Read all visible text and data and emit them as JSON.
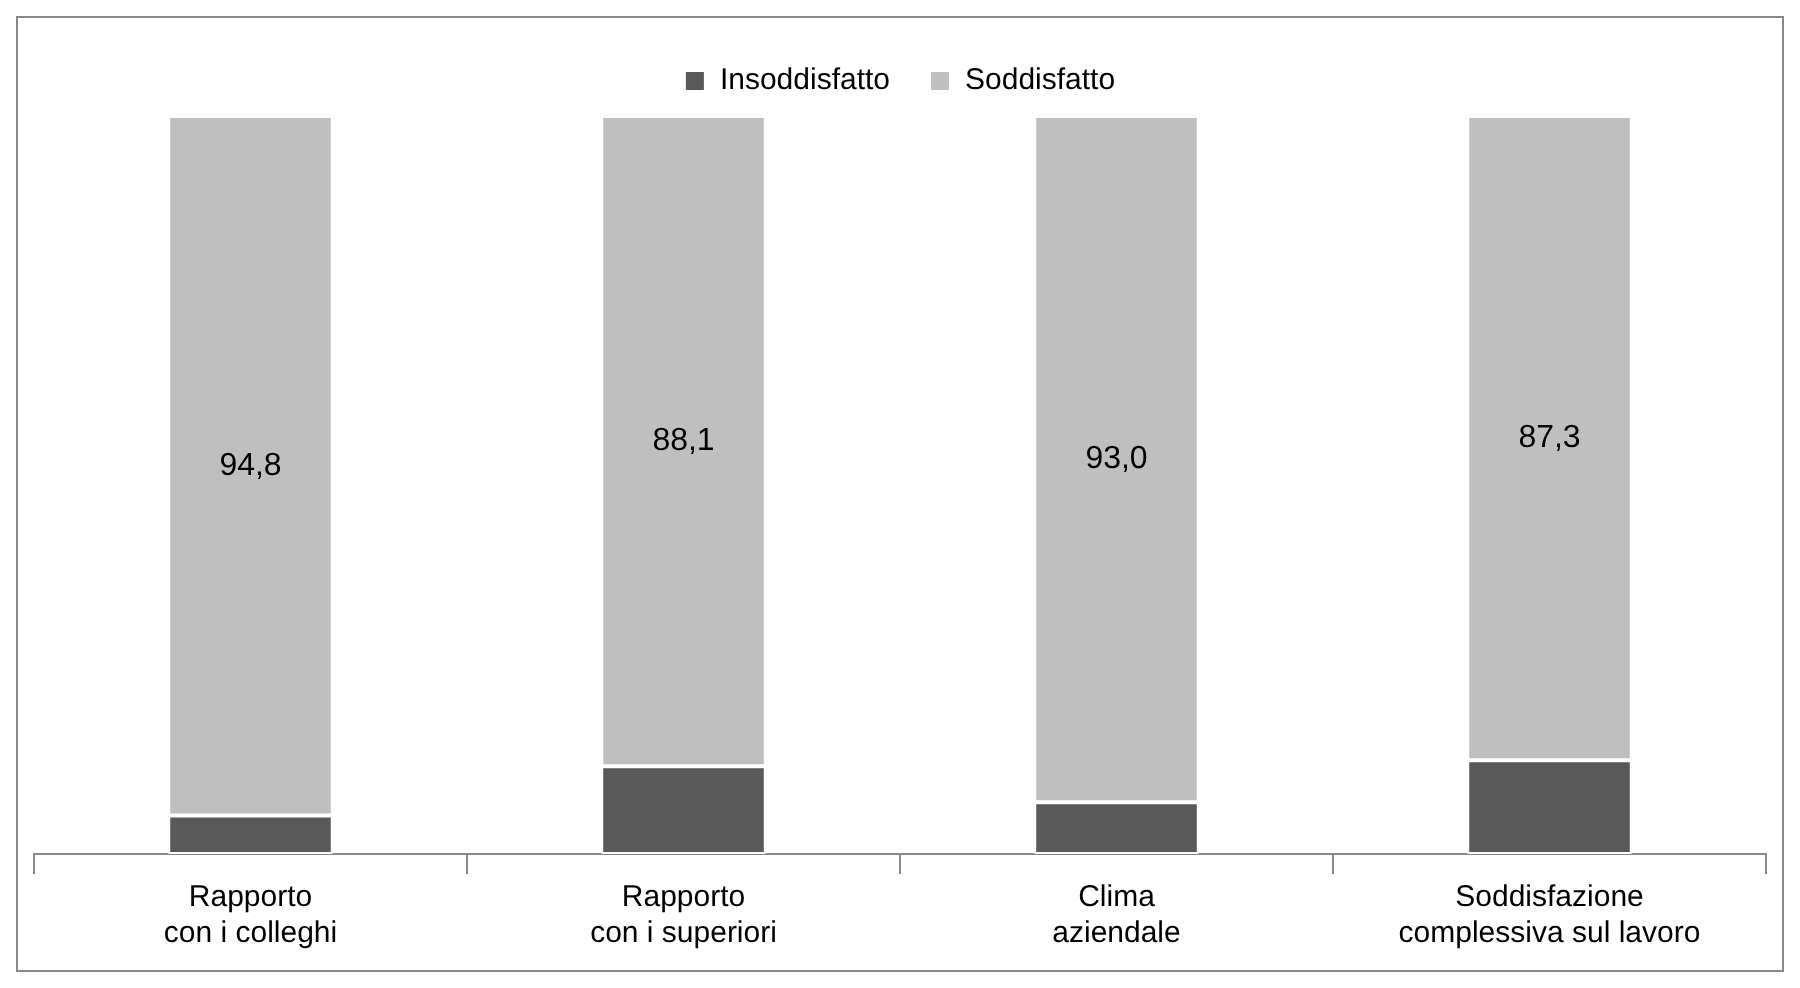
{
  "chart_data": {
    "type": "bar",
    "stacked": true,
    "legend": "top",
    "categories": [
      "Rapporto\ncon i colleghi",
      "Rapporto\ncon i superiori",
      "Clima\naziendale",
      "Soddisfazione\ncomplessiva sul lavoro"
    ],
    "series": [
      {
        "name": "Insoddisfatto",
        "color": "#595959",
        "values": [
          5.2,
          11.9,
          7.0,
          12.7
        ]
      },
      {
        "name": "Soddisfatto",
        "color": "#bfbfbf",
        "values": [
          94.8,
          88.1,
          93.0,
          87.3
        ],
        "value_labels": [
          "94,8",
          "88,1",
          "93,0",
          "87,3"
        ]
      }
    ]
  }
}
